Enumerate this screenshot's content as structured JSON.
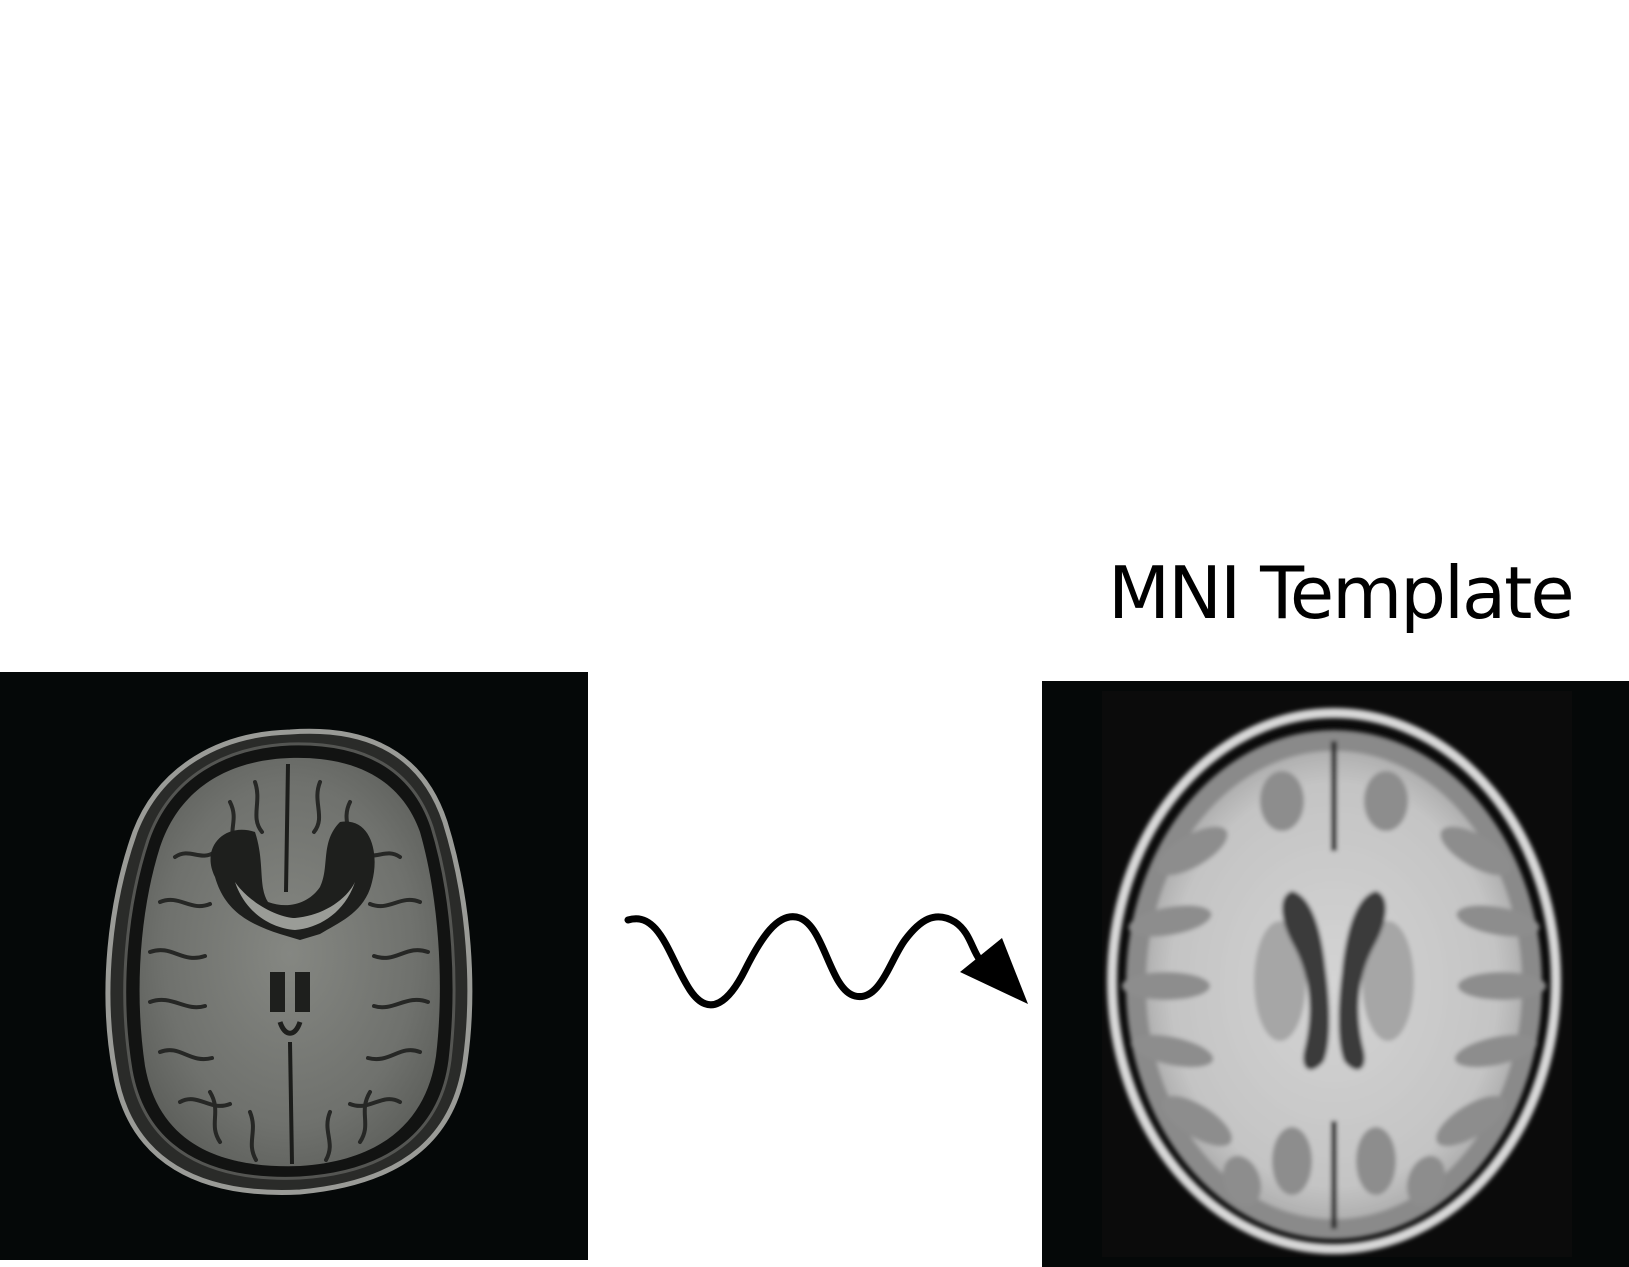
{
  "figure": {
    "template_label": "MNI Template",
    "subject_image_icon": "axial-brain-mri-subject",
    "template_image_icon": "axial-brain-mri-mni-template",
    "arrow_icon": "wavy-arrow-icon"
  },
  "colors": {
    "background": "#ffffff",
    "image_background": "#050808",
    "subject_gray_matter": "#6e706c",
    "subject_white_matter": "#7c7e79",
    "template_white_matter": "#c9c9c9",
    "template_gray_matter": "#8c8c8c",
    "arrow": "#000000"
  }
}
